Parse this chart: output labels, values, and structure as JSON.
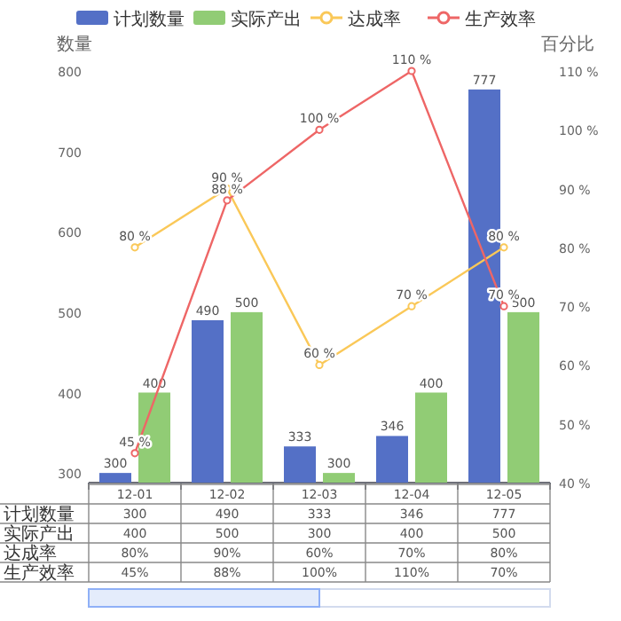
{
  "chart_data": {
    "type": "bar",
    "categories": [
      "12-01",
      "12-02",
      "12-03",
      "12-04",
      "12-05"
    ],
    "series": [
      {
        "name": "计划数量",
        "color": "#5470c6",
        "values": [
          300,
          490,
          333,
          346,
          777
        ],
        "value_labels": [
          "300",
          "490",
          "333",
          "346",
          "777"
        ]
      },
      {
        "name": "实际产出",
        "color": "#91cc75",
        "values": [
          400,
          500,
          300,
          400,
          500
        ],
        "value_labels": [
          "400",
          "500",
          "300",
          "400",
          "500"
        ]
      },
      {
        "name": "达成率",
        "type": "line",
        "axis": "y2",
        "color": "#fac858",
        "values": [
          80,
          90,
          60,
          70,
          80
        ],
        "value_labels": [
          "80 %",
          "90 %",
          "60 %",
          "70 %",
          "80 %"
        ]
      },
      {
        "name": "生产效率",
        "type": "line",
        "axis": "y2",
        "color": "#ee6666",
        "values": [
          45,
          88,
          100,
          110,
          70
        ],
        "value_labels": [
          "45 %",
          "88 %",
          "100 %",
          "110 %",
          "70 %"
        ]
      }
    ],
    "ylabel": "数量",
    "y2label": "百分比",
    "ylim": [
      288,
      800
    ],
    "yticks": [
      300,
      400,
      500,
      600,
      700,
      800
    ],
    "y2lim": [
      40,
      110
    ],
    "y2ticks": [
      {
        "value": 40,
        "label": "40 %"
      },
      {
        "value": 50,
        "label": "50 %"
      },
      {
        "value": 60,
        "label": "60 %"
      },
      {
        "value": 70,
        "label": "70 %"
      },
      {
        "value": 80,
        "label": "80 %"
      },
      {
        "value": 90,
        "label": "90 %"
      },
      {
        "value": 100,
        "label": "100 %"
      },
      {
        "value": 110,
        "label": "110 %"
      }
    ],
    "legend": "top",
    "marker": "circle",
    "line_style": "solid"
  }
}
